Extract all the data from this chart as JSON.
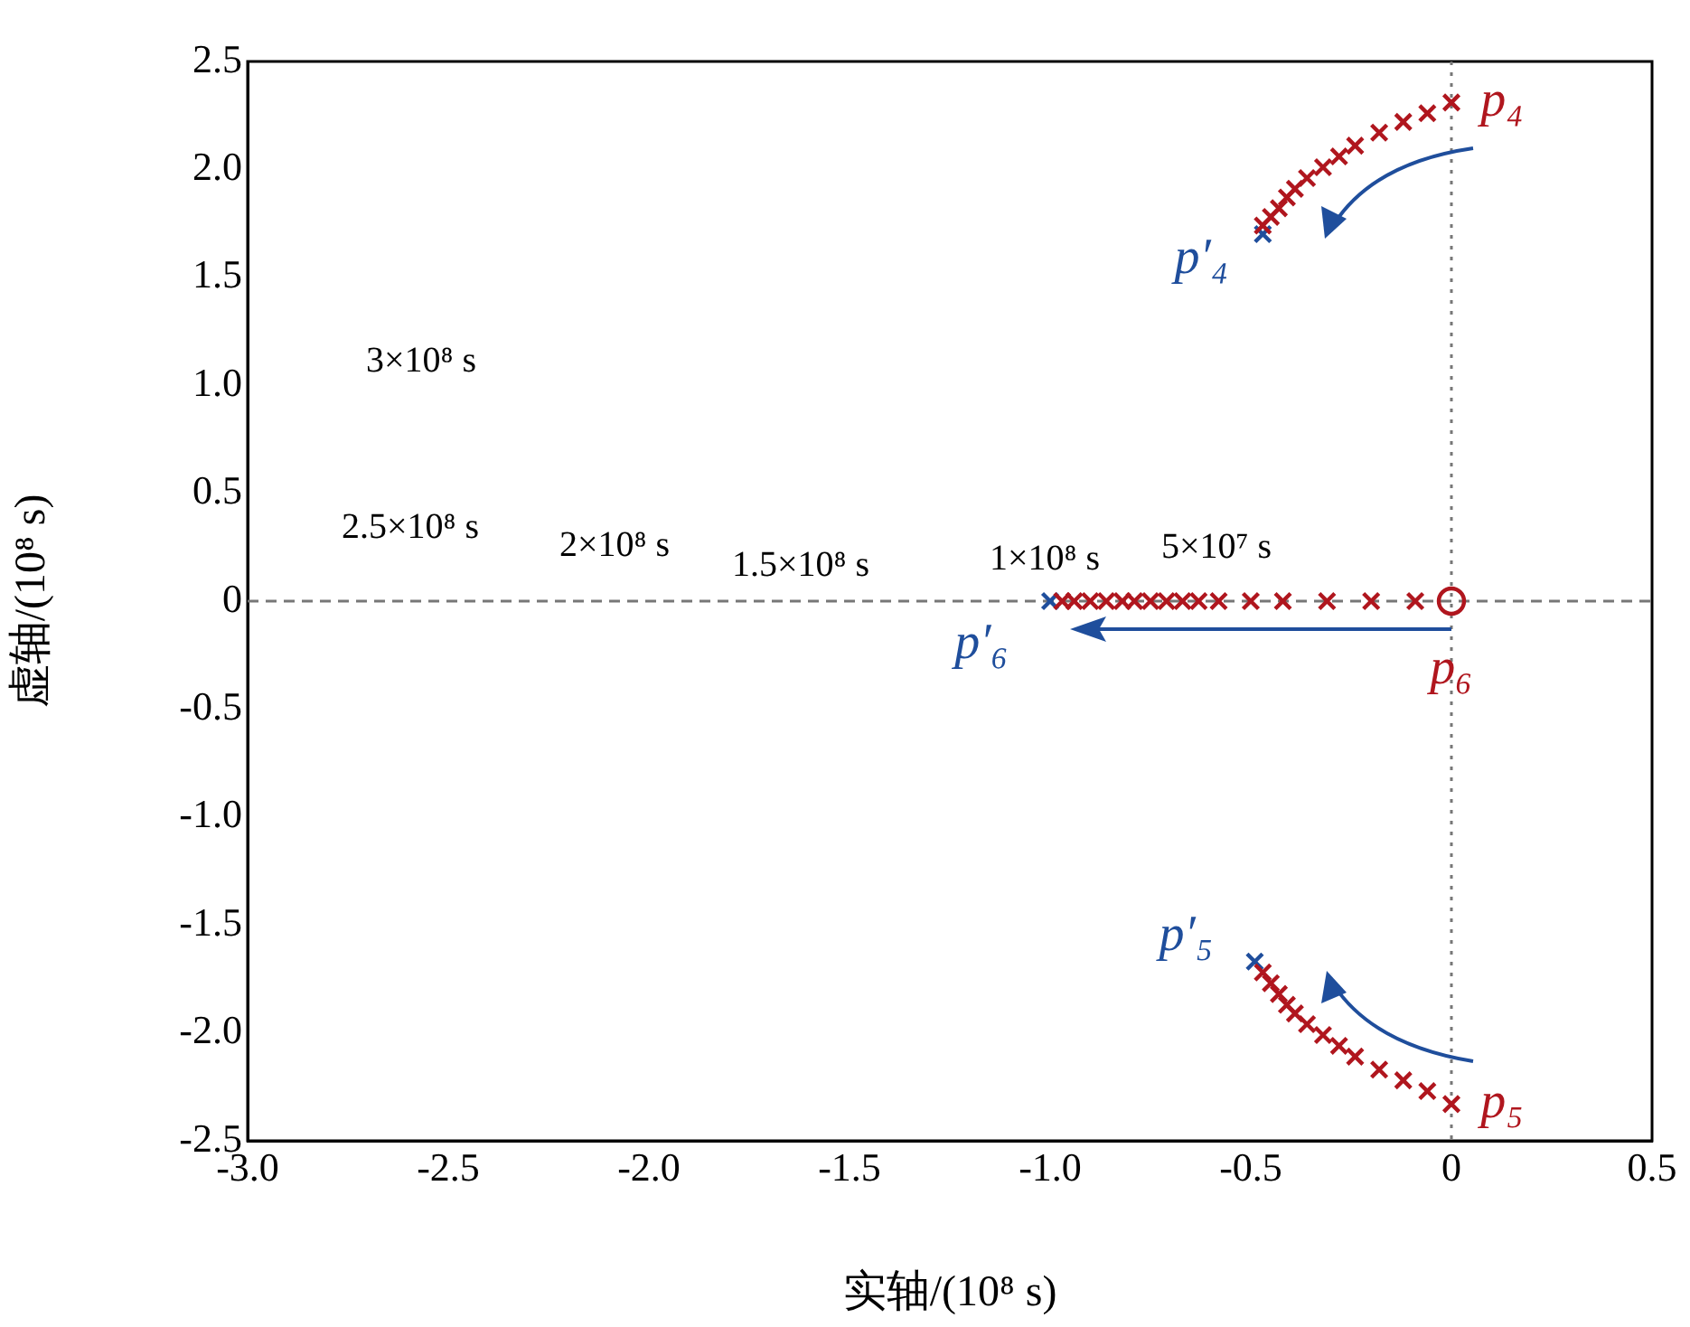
{
  "chart_data": {
    "type": "scatter",
    "xlabel": "实轴/(10⁸ s)",
    "ylabel": "虚轴/(10⁸ s)",
    "xlim": [
      -3,
      0.5
    ],
    "ylim": [
      -2.5,
      2.5
    ],
    "xticks": [
      {
        "value": -3,
        "label": "-3.0"
      },
      {
        "value": -2.5,
        "label": "-2.5"
      },
      {
        "value": -2,
        "label": "-2.0"
      },
      {
        "value": -1.5,
        "label": "-1.5"
      },
      {
        "value": -1,
        "label": "-1.0"
      },
      {
        "value": -0.5,
        "label": "-0.5"
      },
      0,
      0.5
    ],
    "yticks": [
      {
        "value": -2.5,
        "label": "-2.5"
      },
      {
        "value": -2,
        "label": "-2.0"
      },
      {
        "value": -1.5,
        "label": "-1.5"
      },
      {
        "value": -1,
        "label": "-1.0"
      },
      {
        "value": -0.5,
        "label": "-0.5"
      },
      0,
      0.5,
      {
        "value": 1,
        "label": "1.0"
      },
      1.5,
      {
        "value": 2,
        "label": "2.0"
      },
      2.5
    ],
    "marker": "cross",
    "series": [
      {
        "color": "#b0161e",
        "x": [
          0,
          -0.06,
          -0.12,
          -0.18,
          -0.24,
          -0.28,
          -0.32,
          -0.36,
          -0.39,
          -0.41,
          -0.43,
          -0.45,
          -0.47
        ],
        "values": [
          2.31,
          2.26,
          2.22,
          2.17,
          2.11,
          2.06,
          2.01,
          1.96,
          1.91,
          1.87,
          1.82,
          1.78,
          1.74
        ]
      },
      {
        "color": "#b0161e",
        "x": [
          0,
          -0.06,
          -0.12,
          -0.18,
          -0.24,
          -0.28,
          -0.32,
          -0.36,
          -0.39,
          -0.41,
          -0.43,
          -0.45,
          -0.47
        ],
        "values": [
          -2.33,
          -2.27,
          -2.22,
          -2.17,
          -2.11,
          -2.06,
          -2.01,
          -1.96,
          -1.91,
          -1.87,
          -1.82,
          -1.77,
          -1.72
        ]
      },
      {
        "color": "#b0161e",
        "x": [
          -0.09,
          -0.2,
          -0.31,
          -0.42,
          -0.5,
          -0.58,
          -0.63,
          -0.67,
          -0.71,
          -0.75,
          -0.79,
          -0.82,
          -0.86,
          -0.9,
          -0.94,
          -0.97
        ],
        "values": [
          0,
          0,
          0,
          0,
          0,
          0,
          0,
          0,
          0,
          0,
          0,
          0,
          0,
          0,
          0,
          0
        ]
      },
      {
        "color": "#1f4e9c",
        "x": [
          -0.47
        ],
        "values": [
          1.7
        ]
      },
      {
        "color": "#1f4e9c",
        "x": [
          -0.49
        ],
        "values": [
          -1.67
        ]
      },
      {
        "color": "#1f4e9c",
        "x": [
          -1
        ],
        "values": [
          0
        ]
      },
      {
        "color": "#b0161e",
        "marker": "circle",
        "x": [
          0
        ],
        "values": [
          0
        ]
      }
    ],
    "ref_lines": [
      {
        "axis": "y",
        "value": 0,
        "color": "#777777",
        "line_style": "dashed"
      },
      {
        "axis": "x",
        "value": 0,
        "color": "#777777",
        "line_style": "dotted"
      }
    ],
    "annotations": [
      "3×10⁸ s",
      "2.5×10⁸ s",
      "2×10⁸ s",
      "1.5×10⁸ s",
      {
        "text": "1×10⁸ s",
        "x": -1,
        "y": 0
      },
      "5×10⁷ s",
      {
        "text": "p₄",
        "x": 0,
        "y": 2.31
      },
      {
        "text": "p₅",
        "x": 0,
        "y": -2.33
      },
      {
        "text": "p₆",
        "x": 0,
        "y": 0
      },
      {
        "text": "p′₄",
        "x": -0.47,
        "y": 1.7
      },
      {
        "text": "p′₅",
        "x": -0.49,
        "y": -1.67
      },
      {
        "text": "p′₆",
        "x": -1,
        "y": 0
      }
    ]
  }
}
